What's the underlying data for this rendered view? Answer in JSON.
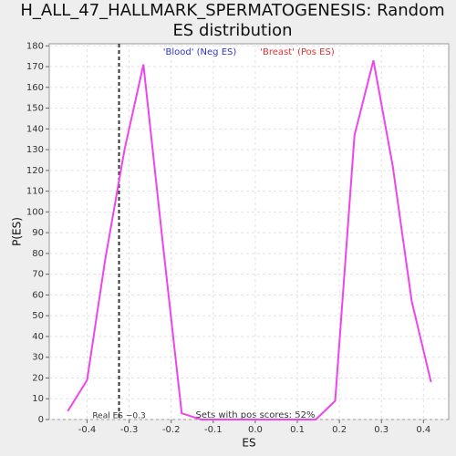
{
  "chart_data": {
    "type": "line",
    "title": [
      "H_ALL_47_HALLMARK_SPERMATOGENESIS: Random",
      "ES distribution"
    ],
    "x_label": "ES",
    "y_label": "P(ES)",
    "legend_labels": [
      {
        "text": "'Blood' (Neg ES)",
        "color": "#3333cc"
      },
      {
        "text": "'Breast' (Pos ES)",
        "color": "#dd3333"
      }
    ],
    "annotations": [
      "Sets with pos scores: 52%"
    ],
    "real_es": {
      "value": -0.324,
      "label": "Real ES −0.3"
    },
    "x": [
      -0.446,
      -0.4,
      -0.357,
      -0.311,
      -0.266,
      -0.22,
      -0.175,
      -0.129,
      -0.083,
      -0.038,
      0.008,
      0.053,
      0.099,
      0.144,
      0.19,
      0.236,
      0.281,
      0.327,
      0.372,
      0.418
    ],
    "series": [
      {
        "name": "P(ES)",
        "color": "#ee44ee",
        "values": [
          4,
          19,
          77,
          130,
          171,
          85,
          3,
          0,
          0,
          0,
          0,
          0,
          0,
          0,
          9,
          137,
          173,
          122,
          57,
          18
        ]
      }
    ],
    "xlim": [
      -0.49,
      0.46
    ],
    "xticks": [
      -0.4,
      -0.3,
      -0.2,
      -0.1,
      {
        "value": 0,
        "label": "0.0"
      },
      0.1,
      0.2,
      0.3,
      0.4
    ],
    "ylim": [
      0,
      181
    ],
    "yticks": [
      0,
      10,
      20,
      30,
      40,
      50,
      60,
      70,
      80,
      90,
      100,
      110,
      120,
      130,
      140,
      150,
      160,
      170,
      180
    ],
    "grid": true
  }
}
